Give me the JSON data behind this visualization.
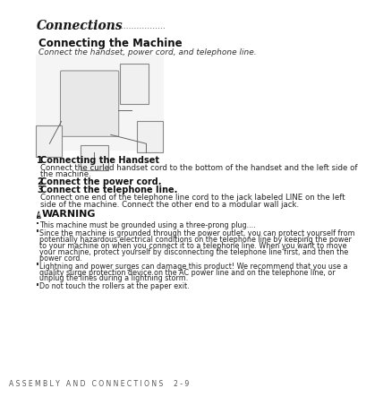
{
  "bg_color": "#ffffff",
  "title": "Connections",
  "section_title": "Connecting the Machine",
  "section_subtitle": "Connect the handset, power cord, and telephone line.",
  "steps": [
    {
      "num": "1",
      "bold": "Connecting the Handset",
      "text": "Connect the curled handset cord to the bottom of the handset and the left side of\nthe machine."
    },
    {
      "num": "2",
      "bold": "Connect the power cord.",
      "text": ""
    },
    {
      "num": "3",
      "bold": "Connect the telephone line.",
      "text": "Connect one end of the telephone line cord to the jack labeled LINE on the left\nside of the machine. Connect the other end to a modular wall jack."
    }
  ],
  "warning_title": "WARNING",
  "warning_bullets": [
    "This machine must be grounded using a three-prong plug....",
    "Since the machine is grounded through the power outlet, you can protect yourself from\npotentially hazardous electrical conditions on the telephone line by keeping the power\nto your machine on when you connect it to a telephone line. When you want to move\nyour machine, protect yourself by disconnecting the telephone line first, and then the\npower cord.",
    "Lightning and power surges can damage this product! We recommend that you use a\nquality surge protection device on the AC power line and on the telephone line, or\nunplug the lines during a lightning storm.",
    "Do not touch the rollers at the paper exit."
  ],
  "footer": "A S S E M B L Y   A N D   C O N N E C T I O N S     2 - 9"
}
